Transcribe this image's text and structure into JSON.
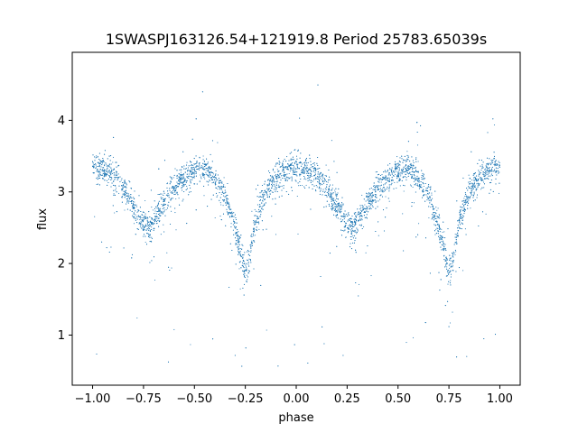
{
  "chart_data": {
    "type": "scatter",
    "title": "1SWASPJ163126.54+121919.8 Period 25783.65039s",
    "xlabel": "phase",
    "ylabel": "flux",
    "xlim": [
      -1.1,
      1.1
    ],
    "ylim": [
      0.3,
      4.95
    ],
    "grid": false,
    "point_color": "#1f77b4",
    "xticks": [
      -1.0,
      -0.75,
      -0.5,
      -0.25,
      0.0,
      0.25,
      0.5,
      0.75,
      1.0
    ],
    "xtick_labels": [
      "−1.00",
      "−0.75",
      "−0.50",
      "−0.25",
      "0.00",
      "0.25",
      "0.50",
      "0.75",
      "1.00"
    ],
    "yticks": [
      1,
      2,
      3,
      4
    ],
    "ytick_labels": [
      "1",
      "2",
      "3",
      "4"
    ],
    "light_curve_profile": {
      "description_free_model": "double-eclipse folded light curve repeated over two cycles",
      "phase": [
        -1.0,
        -0.95,
        -0.9,
        -0.85,
        -0.8,
        -0.75,
        -0.72,
        -0.7,
        -0.65,
        -0.6,
        -0.55,
        -0.5,
        -0.45,
        -0.4,
        -0.35,
        -0.3,
        -0.27,
        -0.25,
        -0.23,
        -0.2,
        -0.15,
        -0.1,
        -0.05,
        0.0,
        0.05,
        0.1,
        0.15,
        0.2,
        0.25,
        0.28,
        0.3,
        0.35,
        0.4,
        0.45,
        0.5,
        0.55,
        0.6,
        0.65,
        0.7,
        0.73,
        0.75,
        0.77,
        0.8,
        0.85,
        0.9,
        0.95,
        1.0
      ],
      "flux": [
        3.35,
        3.3,
        3.22,
        3.05,
        2.8,
        2.55,
        2.52,
        2.6,
        2.85,
        3.05,
        3.2,
        3.3,
        3.32,
        3.2,
        2.95,
        2.5,
        2.1,
        1.85,
        2.05,
        2.6,
        3.0,
        3.2,
        3.3,
        3.35,
        3.3,
        3.22,
        3.05,
        2.8,
        2.55,
        2.52,
        2.6,
        2.85,
        3.05,
        3.2,
        3.3,
        3.32,
        3.2,
        2.95,
        2.5,
        2.1,
        1.85,
        2.05,
        2.6,
        3.0,
        3.2,
        3.3,
        3.35
      ]
    },
    "n_points": 6000
  }
}
